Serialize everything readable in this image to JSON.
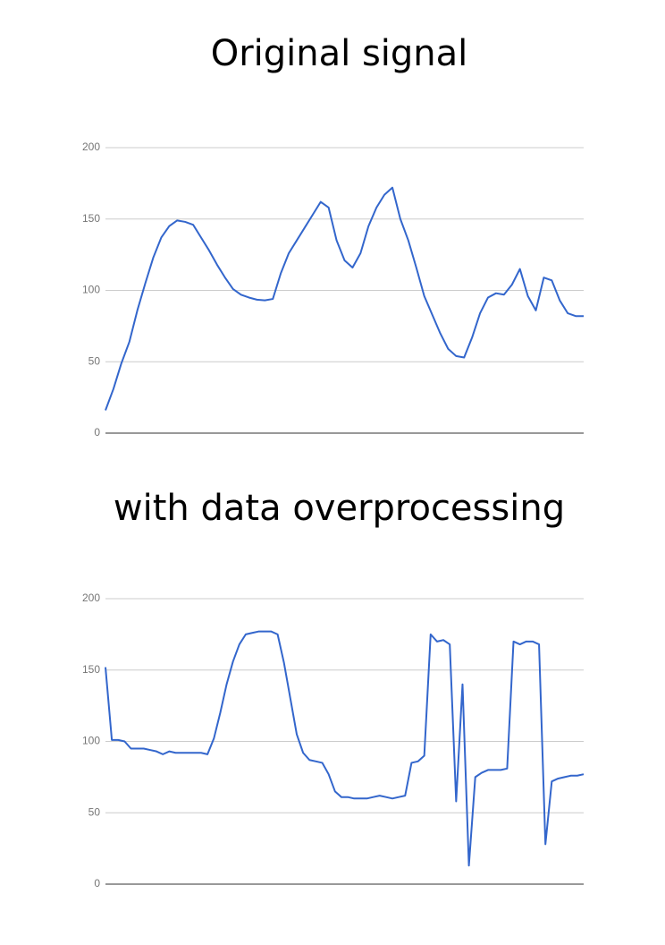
{
  "chart_data": [
    {
      "type": "line",
      "title": "Original signal",
      "color": "#3366cc",
      "ylim": [
        0,
        200
      ],
      "yticks": [
        0,
        50,
        100,
        150,
        200
      ],
      "grid": true,
      "values": [
        16,
        31,
        49,
        64,
        86,
        105,
        123,
        137,
        145,
        149,
        148,
        146,
        137,
        128,
        118,
        109,
        101,
        97,
        95,
        93.5,
        93,
        94,
        112,
        126,
        135,
        144,
        153,
        162,
        158,
        135,
        121,
        116,
        126,
        145,
        158,
        167,
        172,
        150,
        135,
        116,
        96,
        83,
        70,
        59,
        54,
        53,
        67,
        84,
        95,
        98,
        97,
        104,
        115,
        96,
        86,
        109,
        107,
        93,
        84,
        82,
        82
      ]
    },
    {
      "type": "line",
      "title": "with data overprocessing",
      "color": "#3366cc",
      "ylim": [
        0,
        200
      ],
      "yticks": [
        0,
        50,
        100,
        150,
        200
      ],
      "grid": true,
      "values": [
        152,
        101,
        101,
        100,
        95,
        95,
        95,
        94,
        93,
        91,
        93,
        92,
        92,
        92,
        92,
        92,
        91,
        102,
        120,
        140,
        156,
        168,
        175,
        176,
        177,
        177,
        177,
        175,
        155,
        130,
        105,
        92,
        87,
        86,
        85,
        77,
        65,
        61,
        61,
        60,
        60,
        60,
        61,
        62,
        61,
        60,
        61,
        62,
        85,
        86,
        90,
        175,
        170,
        171,
        168,
        58,
        140,
        13,
        75,
        78,
        80,
        80,
        80,
        81,
        170,
        168,
        170,
        170,
        168,
        28,
        72,
        74,
        75,
        76,
        76,
        77
      ]
    }
  ]
}
